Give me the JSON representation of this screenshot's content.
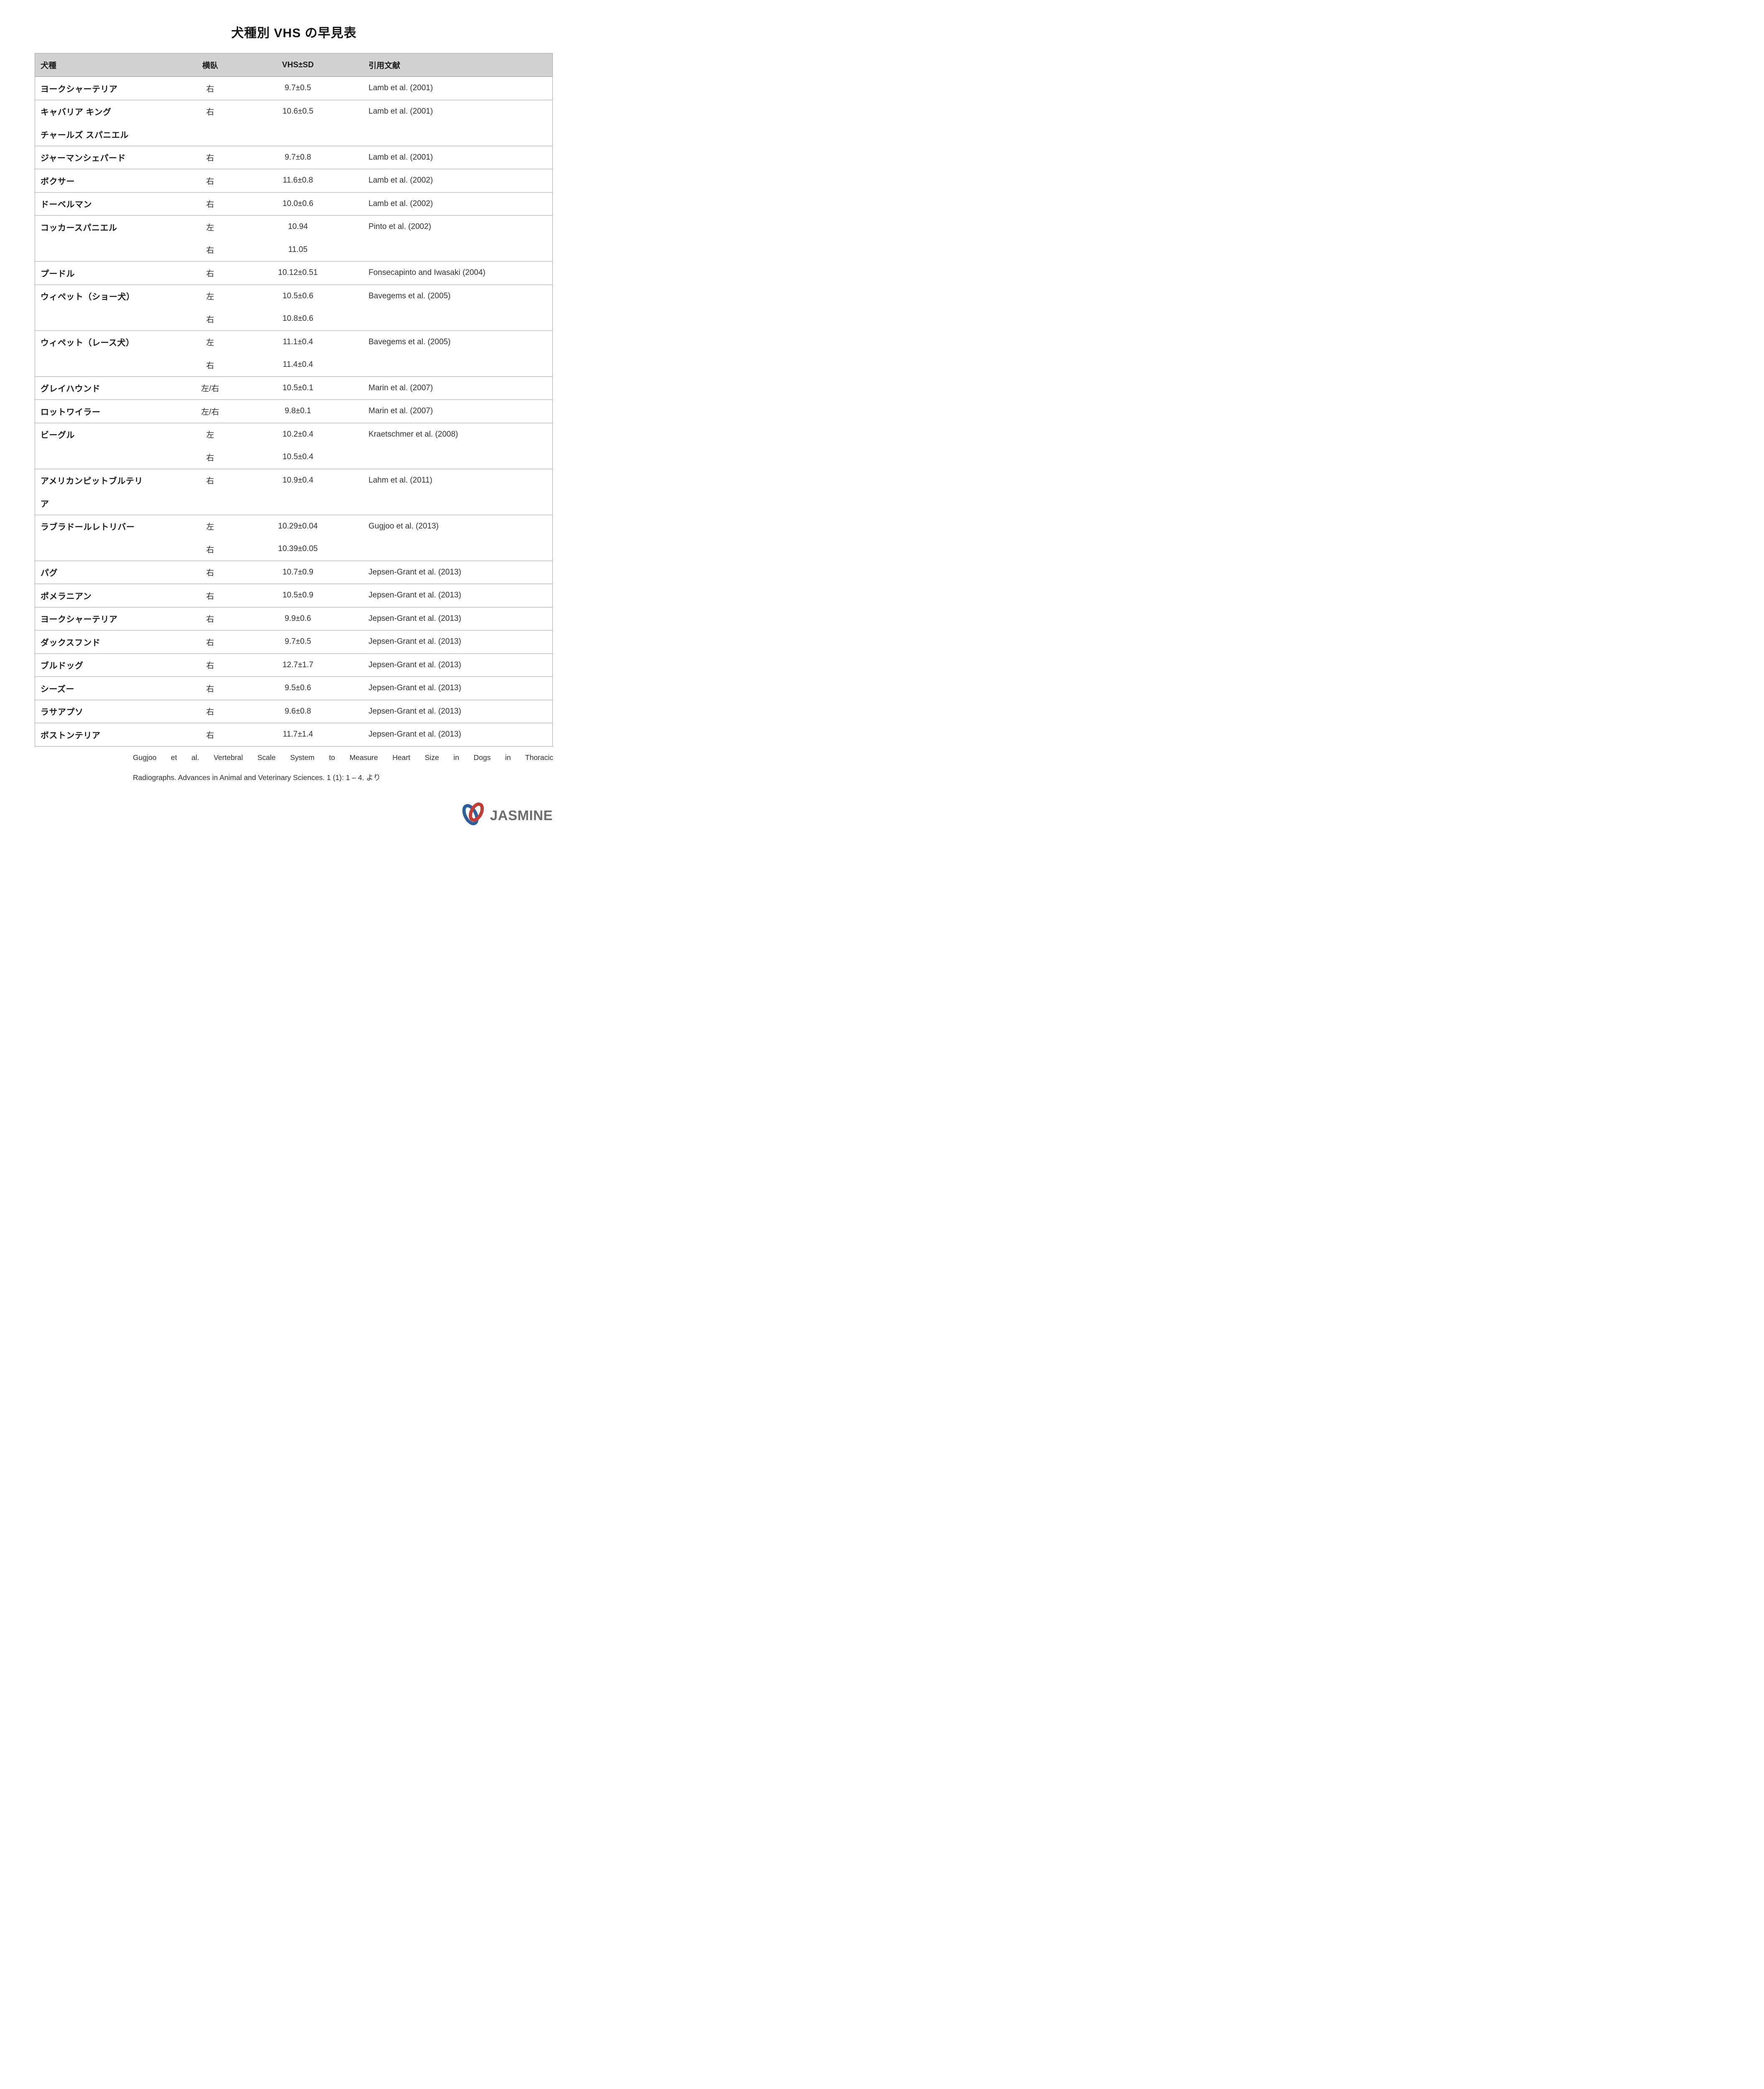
{
  "page": {
    "title": "犬種別 VHS の早見表"
  },
  "table": {
    "headers": {
      "breed": "犬種",
      "lateral": "横臥",
      "vhs": "VHS±SD",
      "reference": "引用文献"
    },
    "entries": [
      {
        "breed_lines": [
          "ヨークシャーテリア"
        ],
        "rows": [
          {
            "side": "右",
            "vhs": "9.7±0.5"
          }
        ],
        "reference": "Lamb et al. (2001)"
      },
      {
        "breed_lines": [
          "キャバリア キング",
          "チャールズ スパニエル"
        ],
        "rows": [
          {
            "side": "右",
            "vhs": "10.6±0.5"
          }
        ],
        "reference": "Lamb et al. (2001)"
      },
      {
        "breed_lines": [
          "ジャーマンシェパード"
        ],
        "rows": [
          {
            "side": "右",
            "vhs": "9.7±0.8"
          }
        ],
        "reference": "Lamb et al. (2001)"
      },
      {
        "breed_lines": [
          "ボクサー"
        ],
        "rows": [
          {
            "side": "右",
            "vhs": "11.6±0.8"
          }
        ],
        "reference": "Lamb et al. (2002)"
      },
      {
        "breed_lines": [
          "ドーベルマン"
        ],
        "rows": [
          {
            "side": "右",
            "vhs": "10.0±0.6"
          }
        ],
        "reference": "Lamb et al. (2002)"
      },
      {
        "breed_lines": [
          "コッカースパニエル"
        ],
        "rows": [
          {
            "side": "左",
            "vhs": "10.94"
          },
          {
            "side": "右",
            "vhs": "11.05"
          }
        ],
        "reference": "Pinto et al. (2002)"
      },
      {
        "breed_lines": [
          "プードル"
        ],
        "rows": [
          {
            "side": "右",
            "vhs": "10.12±0.51"
          }
        ],
        "reference": "Fonsecapinto and Iwasaki (2004)"
      },
      {
        "breed_lines": [
          "ウィペット（ショー犬）"
        ],
        "rows": [
          {
            "side": "左",
            "vhs": "10.5±0.6"
          },
          {
            "side": "右",
            "vhs": "10.8±0.6"
          }
        ],
        "reference": "Bavegems et al. (2005)"
      },
      {
        "breed_lines": [
          "ウィペット（レース犬）"
        ],
        "rows": [
          {
            "side": "左",
            "vhs": "11.1±0.4"
          },
          {
            "side": "右",
            "vhs": "11.4±0.4"
          }
        ],
        "reference": "Bavegems et al. (2005)"
      },
      {
        "breed_lines": [
          "グレイハウンド"
        ],
        "rows": [
          {
            "side": "左/右",
            "vhs": "10.5±0.1"
          }
        ],
        "reference": "Marin et al. (2007)"
      },
      {
        "breed_lines": [
          "ロットワイラー"
        ],
        "rows": [
          {
            "side": "左/右",
            "vhs": "9.8±0.1"
          }
        ],
        "reference": "Marin et al. (2007)"
      },
      {
        "breed_lines": [
          "ビーグル"
        ],
        "rows": [
          {
            "side": "左",
            "vhs": "10.2±0.4"
          },
          {
            "side": "右",
            "vhs": "10.5±0.4"
          }
        ],
        "reference": "Kraetschmer et al. (2008)"
      },
      {
        "breed_lines": [
          "アメリカンピットブルテリ",
          "ア"
        ],
        "rows": [
          {
            "side": "右",
            "vhs": "10.9±0.4"
          }
        ],
        "reference": "Lahm et al. (2011)"
      },
      {
        "breed_lines": [
          "ラブラドールレトリバー"
        ],
        "rows": [
          {
            "side": "左",
            "vhs": "10.29±0.04"
          },
          {
            "side": "右",
            "vhs": "10.39±0.05"
          }
        ],
        "reference": "Gugjoo et al. (2013)"
      },
      {
        "breed_lines": [
          "パグ"
        ],
        "rows": [
          {
            "side": "右",
            "vhs": "10.7±0.9"
          }
        ],
        "reference": "Jepsen-Grant et al. (2013)"
      },
      {
        "breed_lines": [
          "ポメラニアン"
        ],
        "rows": [
          {
            "side": "右",
            "vhs": "10.5±0.9"
          }
        ],
        "reference": "Jepsen-Grant et al. (2013)"
      },
      {
        "breed_lines": [
          "ヨークシャーテリア"
        ],
        "rows": [
          {
            "side": "右",
            "vhs": "9.9±0.6"
          }
        ],
        "reference": "Jepsen-Grant et al. (2013)"
      },
      {
        "breed_lines": [
          "ダックスフンド"
        ],
        "rows": [
          {
            "side": "右",
            "vhs": "9.7±0.5"
          }
        ],
        "reference": "Jepsen-Grant et al. (2013)"
      },
      {
        "breed_lines": [
          "ブルドッグ"
        ],
        "rows": [
          {
            "side": "右",
            "vhs": "12.7±1.7"
          }
        ],
        "reference": "Jepsen-Grant et al. (2013)"
      },
      {
        "breed_lines": [
          "シーズー"
        ],
        "rows": [
          {
            "side": "右",
            "vhs": "9.5±0.6"
          }
        ],
        "reference": "Jepsen-Grant et al. (2013)"
      },
      {
        "breed_lines": [
          "ラサアプソ"
        ],
        "rows": [
          {
            "side": "右",
            "vhs": "9.6±0.8"
          }
        ],
        "reference": "Jepsen-Grant et al. (2013)"
      },
      {
        "breed_lines": [
          "ボストンテリア"
        ],
        "rows": [
          {
            "side": "右",
            "vhs": "11.7±1.4"
          }
        ],
        "reference": "Jepsen-Grant et al. (2013)"
      }
    ]
  },
  "footer": {
    "citation_line1": "Gugjoo et al. Vertebral Scale System to Measure Heart Size in Dogs in Thoracic",
    "citation_line2": "Radiographs. Advances in Animal and Veterinary Sciences. 1 (1): 1 – 4. より"
  },
  "logo": {
    "text": "JASMINE",
    "blue": "#2e5d9c",
    "red": "#c23b34",
    "text_color": "#6d6d6d"
  },
  "colors": {
    "header_bg": "#d3d3d3",
    "table_border": "#a2a2a2",
    "body_text": "#333333",
    "heading_text": "#1b1b1b"
  }
}
